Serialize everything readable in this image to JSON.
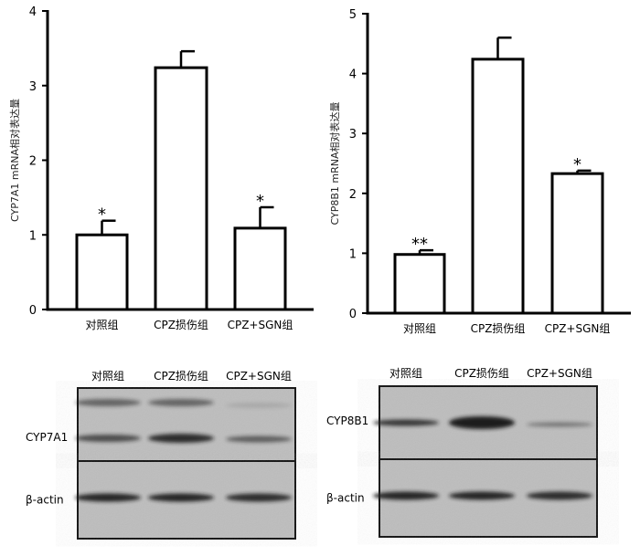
{
  "chart_data": [
    {
      "type": "bar",
      "ylabel": "CYP7A1 mRNA相对表达量",
      "ylim": [
        0,
        4
      ],
      "yticks": [
        0,
        1,
        2,
        3,
        4
      ],
      "categories": [
        "对照组",
        "CPZ损伤组",
        "CPZ+SGN组"
      ],
      "values": [
        1.0,
        3.24,
        1.09
      ],
      "error": [
        0.19,
        0.22,
        0.28
      ],
      "significance": [
        "*",
        "",
        "*"
      ]
    },
    {
      "type": "bar",
      "ylabel": "CYP8B1 mRNA相对表达量",
      "ylim": [
        0,
        5
      ],
      "yticks": [
        0,
        1,
        2,
        3,
        4,
        5
      ],
      "categories": [
        "对照组",
        "CPZ损伤组",
        "CPZ+SGN组"
      ],
      "values": [
        0.98,
        4.24,
        2.33
      ],
      "error": [
        0.07,
        0.36,
        0.05
      ],
      "significance": [
        "**",
        "",
        "*"
      ]
    }
  ],
  "blots": [
    {
      "lanes": [
        "对照组",
        "CPZ损伤组",
        "CPZ+SGN组"
      ],
      "rows": [
        "CYP7A1",
        "β-actin"
      ]
    },
    {
      "lanes": [
        "对照组",
        "CPZ损伤组",
        "CPZ+SGN组"
      ],
      "rows": [
        "CYP8B1",
        "β-actin"
      ]
    }
  ],
  "colors": {
    "bar_fill": "#ffffff",
    "bar_stroke": "#000000",
    "blot_bg": "#bdbdbd",
    "band": "#1a1a1a"
  }
}
